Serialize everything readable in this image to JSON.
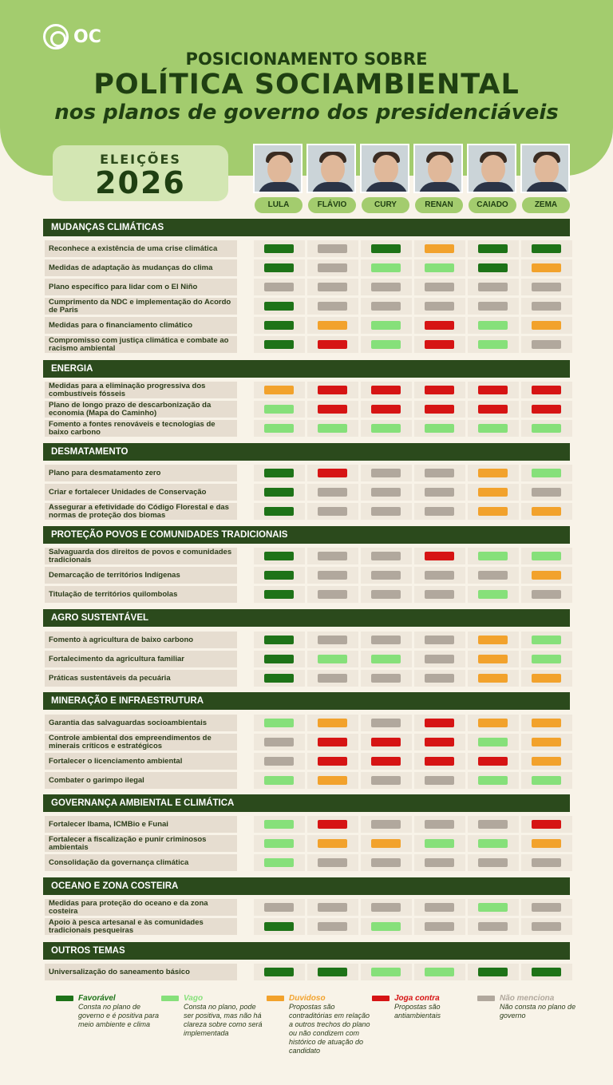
{
  "brand": {
    "logo_text": "OC"
  },
  "header": {
    "line1": "POSICIONAMENTO SOBRE",
    "line2": "POLÍTICA SOCIAMBIENTAL",
    "line3": "nos planos de governo dos presidenciáveis"
  },
  "election": {
    "label": "ELEIÇÕES",
    "year": "2026"
  },
  "candidates": [
    {
      "name": "LULA"
    },
    {
      "name": "FLÁVIO"
    },
    {
      "name": "CURY"
    },
    {
      "name": "RENAN"
    },
    {
      "name": "CAIADO"
    },
    {
      "name": "ZEMA"
    }
  ],
  "colors": {
    "F": "#1e7318",
    "V": "#86e07a",
    "D": "#f2a22c",
    "J": "#d61414",
    "N": "#b1a89d"
  },
  "sections": [
    {
      "title": "MUDANÇAS CLIMÁTICAS",
      "rows": [
        {
          "label": "Reconhece a existência de uma crise climática",
          "ratings": [
            "F",
            "N",
            "F",
            "D",
            "F",
            "F"
          ]
        },
        {
          "label": "Medidas de adaptação às mudanças do clima",
          "ratings": [
            "F",
            "N",
            "V",
            "V",
            "F",
            "D"
          ]
        },
        {
          "label": "Plano específico para lidar com o El Niño",
          "ratings": [
            "N",
            "N",
            "N",
            "N",
            "N",
            "N"
          ]
        },
        {
          "label": "Cumprimento da NDC e implementação do Acordo de Paris",
          "ratings": [
            "F",
            "N",
            "N",
            "N",
            "N",
            "N"
          ]
        },
        {
          "label": "Medidas para o financiamento climático",
          "ratings": [
            "F",
            "D",
            "V",
            "J",
            "V",
            "D"
          ]
        },
        {
          "label": "Compromisso com justiça climática e combate ao racismo ambiental",
          "ratings": [
            "F",
            "J",
            "V",
            "J",
            "V",
            "N"
          ]
        }
      ]
    },
    {
      "title": "ENERGIA",
      "rows": [
        {
          "label": "Medidas para a eliminação progressiva dos combustíveis fósseis",
          "ratings": [
            "D",
            "J",
            "J",
            "J",
            "J",
            "J"
          ]
        },
        {
          "label": "Plano de longo prazo de descarbonização da economia (Mapa do Caminho)",
          "ratings": [
            "V",
            "J",
            "J",
            "J",
            "J",
            "J"
          ]
        },
        {
          "label": "Fomento a fontes renováveis e tecnologias de baixo carbono",
          "ratings": [
            "V",
            "V",
            "V",
            "V",
            "V",
            "V"
          ]
        }
      ]
    },
    {
      "title": "DESMATAMENTO",
      "rows": [
        {
          "label": "Plano para desmatamento zero",
          "ratings": [
            "F",
            "J",
            "N",
            "N",
            "D",
            "V"
          ]
        },
        {
          "label": "Criar e fortalecer Unidades de Conservação",
          "ratings": [
            "F",
            "N",
            "N",
            "N",
            "D",
            "N"
          ]
        },
        {
          "label": "Assegurar a efetividade do Código Florestal e das normas de proteção dos biomas",
          "ratings": [
            "F",
            "N",
            "N",
            "N",
            "D",
            "D"
          ]
        }
      ]
    },
    {
      "title": "PROTEÇÃO POVOS E COMUNIDADES TRADICIONAIS",
      "rows": [
        {
          "label": "Salvaguarda dos direitos de povos e comunidades tradicionais",
          "ratings": [
            "F",
            "N",
            "N",
            "J",
            "V",
            "V"
          ]
        },
        {
          "label": "Demarcação de territórios Indígenas",
          "ratings": [
            "F",
            "N",
            "N",
            "N",
            "N",
            "D"
          ]
        },
        {
          "label": "Titulação de territórios quilombolas",
          "ratings": [
            "F",
            "N",
            "N",
            "N",
            "V",
            "N"
          ]
        }
      ]
    },
    {
      "title": "AGRO SUSTENTÁVEL",
      "rows": [
        {
          "label": "Fomento à agricultura de baixo carbono",
          "ratings": [
            "F",
            "N",
            "N",
            "N",
            "D",
            "V"
          ]
        },
        {
          "label": "Fortalecimento da agricultura familiar",
          "ratings": [
            "F",
            "V",
            "V",
            "N",
            "D",
            "V"
          ]
        },
        {
          "label": "Práticas sustentáveis da pecuária",
          "ratings": [
            "F",
            "N",
            "N",
            "N",
            "D",
            "D"
          ]
        }
      ]
    },
    {
      "title": "MINERAÇÃO E INFRAESTRUTURA",
      "rows": [
        {
          "label": "Garantia das salvaguardas socioambientais",
          "ratings": [
            "V",
            "D",
            "N",
            "J",
            "D",
            "D"
          ]
        },
        {
          "label": "Controle ambiental dos empreendimentos de minerais críticos e estratégicos",
          "ratings": [
            "N",
            "J",
            "J",
            "J",
            "V",
            "D"
          ]
        },
        {
          "label": "Fortalecer o licenciamento ambiental",
          "ratings": [
            "N",
            "J",
            "J",
            "J",
            "J",
            "D"
          ]
        },
        {
          "label": "Combater o garimpo ilegal",
          "ratings": [
            "V",
            "D",
            "N",
            "N",
            "V",
            "V"
          ]
        }
      ]
    },
    {
      "title": "GOVERNANÇA AMBIENTAL E CLIMÁTICA",
      "rows": [
        {
          "label": "Fortalecer Ibama, ICMBio e Funai",
          "ratings": [
            "V",
            "J",
            "N",
            "N",
            "N",
            "J"
          ]
        },
        {
          "label": "Fortalecer a fiscalização e punir criminosos ambientais",
          "ratings": [
            "V",
            "D",
            "D",
            "V",
            "V",
            "D"
          ]
        },
        {
          "label": "Consolidação da governança climática",
          "ratings": [
            "V",
            "N",
            "N",
            "N",
            "N",
            "N"
          ]
        }
      ]
    },
    {
      "title": "OCEANO E ZONA COSTEIRA",
      "rows": [
        {
          "label": "Medidas para proteção do oceano e da zona costeira",
          "ratings": [
            "N",
            "N",
            "N",
            "N",
            "V",
            "N"
          ]
        },
        {
          "label": "Apoio à pesca artesanal e às comunidades tradicionais pesqueiras",
          "ratings": [
            "F",
            "N",
            "V",
            "N",
            "N",
            "N"
          ]
        }
      ]
    },
    {
      "title": "OUTROS TEMAS",
      "rows": [
        {
          "label": "Universalização do saneamento básico",
          "ratings": [
            "F",
            "F",
            "V",
            "V",
            "F",
            "F"
          ]
        }
      ]
    }
  ],
  "legend": [
    {
      "key": "F",
      "title": "Favorável",
      "desc": "Consta no plano de governo e é positiva para meio ambiente e clima"
    },
    {
      "key": "V",
      "title": "Vago",
      "desc": "Consta no plano, pode ser positiva, mas não há clareza sobre como será implementada"
    },
    {
      "key": "D",
      "title": "Duvidoso",
      "desc": "Propostas são contraditórias em relação a outros trechos do plano ou não condizem com histórico de atuação do candidato"
    },
    {
      "key": "J",
      "title": "Joga contra",
      "desc": "Propostas são antiambientais"
    },
    {
      "key": "N",
      "title": "Não menciona",
      "desc": "Não consta no plano de governo"
    }
  ]
}
